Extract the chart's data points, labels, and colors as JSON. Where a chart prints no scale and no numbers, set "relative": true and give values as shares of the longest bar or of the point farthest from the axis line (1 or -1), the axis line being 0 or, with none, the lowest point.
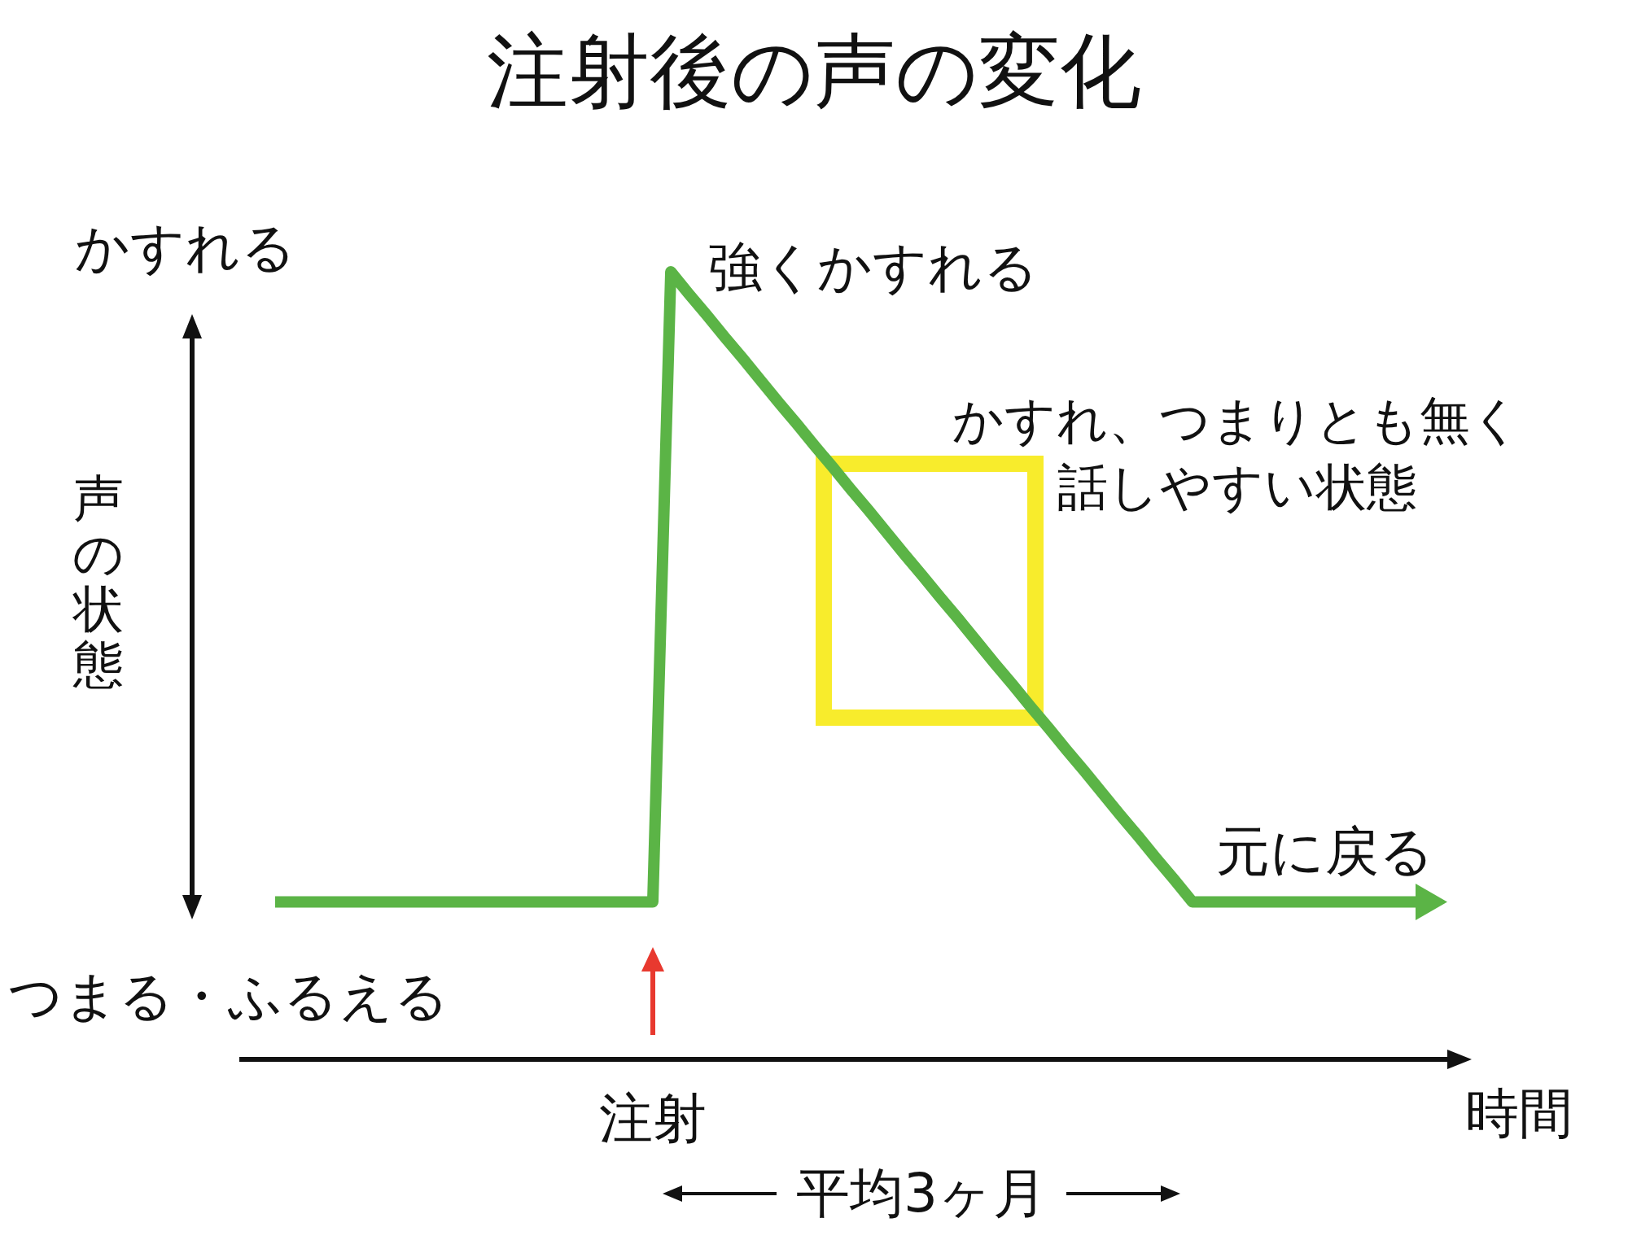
{
  "chart_data": {
    "type": "line",
    "title": "注射後の声の変化",
    "xlabel": "時間",
    "ylabel": "声の状態",
    "relative": true,
    "categories": [
      null,
      null,
      null,
      null,
      null,
      null,
      null,
      null,
      null,
      null,
      null,
      null,
      null,
      null,
      null,
      null,
      null,
      null,
      null,
      null,
      null,
      null,
      null,
      null,
      null,
      null,
      null,
      null,
      null,
      null,
      null,
      null,
      null,
      null,
      null,
      null,
      null,
      null,
      null,
      null,
      null,
      null,
      null,
      null,
      null,
      null,
      null,
      null,
      null,
      null,
      null,
      null,
      null,
      null,
      null,
      null,
      null,
      null,
      null,
      null,
      null,
      null,
      null,
      null,
      null
    ],
    "series": [
      {
        "color": "#5bb446",
        "values": [
          0.2,
          0.2,
          0.2,
          0.2,
          0.2,
          0.2,
          0.2,
          0.2,
          0.2,
          0.2,
          0.2,
          0.2,
          0.2,
          0.2,
          0.2,
          0.2,
          0.2,
          0.2,
          0.2,
          0.2,
          0.2,
          0.2,
          1,
          0.972,
          0.945,
          0.917,
          0.89,
          0.862,
          0.834,
          0.807,
          0.779,
          0.752,
          0.724,
          0.697,
          0.669,
          0.641,
          0.614,
          0.586,
          0.559,
          0.531,
          0.503,
          0.476,
          0.448,
          0.421,
          0.393,
          0.366,
          0.338,
          0.31,
          0.283,
          0.255,
          0.228,
          0.2,
          0.2,
          0.2,
          0.2,
          0.2,
          0.2,
          0.2,
          0.2,
          0.2,
          0.2,
          0.2,
          0.2,
          0.2,
          0.2
        ]
      }
    ],
    "annotations": [
      "かすれる",
      "つまる・ふるえる",
      "強くかすれる",
      "かすれ、つまりとも無く話しやすい状態",
      "元に戻る",
      "注射",
      "平均3ヶ月"
    ],
    "marker": "none",
    "line_style": "solid"
  }
}
